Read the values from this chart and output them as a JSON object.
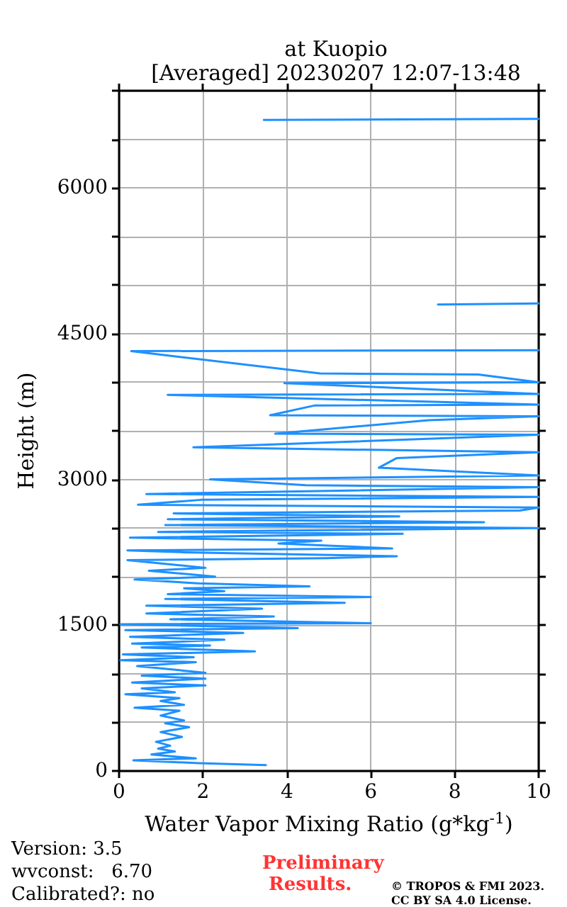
{
  "chart_data": {
    "type": "line",
    "title": "at Kuopio",
    "subtitle": "[Averaged] 20230207 12:07-13:48",
    "xlabel": "Water Vapor Mixing Ratio (g*kg$^{-1}$)",
    "ylabel": "Height (m)",
    "annotations": [
      "Version: 3.5",
      "wvconst:   6.70",
      "Calibrated?: no",
      "Preliminary Results.",
      "© TROPOS & FMI 2023. CC BY SA 4.0 License."
    ],
    "series": [
      {
        "color": "#1e90ff",
        "x": [
          3.5,
          1.9,
          0.34,
          1.83,
          0.77,
          1.33,
          0.93,
          1.22,
          0.88,
          1.5,
          0.99,
          1.67,
          1.1,
          1.55,
          0.99,
          1.44,
          0.37,
          1.55,
          0.99,
          1.44,
          0.15,
          1.33,
          0.54,
          2.06,
          0.31,
          2.06,
          0.54,
          2.06,
          0.43,
          1.83,
          0.03,
          1.78,
          0.09,
          3.24,
          0.54,
          2.17,
          0.31,
          2.51,
          0.26,
          2.96,
          0.15,
          4.26,
          0.03,
          6.0,
          1.22,
          3.69,
          0.65,
          3.41,
          0.65,
          5.38,
          1.1,
          6.0,
          1.16,
          2.51,
          1.55,
          4.54,
          1.89,
          0.37,
          2.29,
          0.71,
          2.06,
          0.2,
          4.93,
          6.62,
          1.55,
          0.2,
          6.51,
          3.8,
          4.82,
          0.26,
          6.76,
          0.93,
          10,
          1.1,
          8.7,
          1.16,
          6.68,
          1.3,
          9.55,
          10,
          0.45,
          1.95,
          10,
          0.65,
          10,
          4.45,
          2.17,
          10,
          6.19,
          6.62,
          10,
          1.77,
          10,
          3.72,
          7.38,
          10,
          3.6,
          4.65,
          10,
          1.16,
          10,
          3.94,
          10,
          8.56,
          4.79,
          0.29,
          10,
          null,
          7.6,
          10,
          null,
          3.45,
          10
        ],
        "values": [
          60,
          80,
          110,
          130,
          170,
          200,
          230,
          260,
          300,
          350,
          400,
          450,
          490,
          520,
          570,
          620,
          650,
          680,
          720,
          750,
          790,
          810,
          850,
          880,
          910,
          950,
          980,
          1010,
          1080,
          1120,
          1140,
          1170,
          1200,
          1230,
          1270,
          1290,
          1310,
          1350,
          1380,
          1420,
          1450,
          1470,
          1510,
          1520,
          1560,
          1590,
          1620,
          1670,
          1700,
          1730,
          1770,
          1790,
          1820,
          1850,
          1880,
          1900,
          1930,
          1970,
          2000,
          2060,
          2090,
          2170,
          2190,
          2210,
          2250,
          2270,
          2290,
          2340,
          2370,
          2400,
          2440,
          2460,
          2500,
          2530,
          2560,
          2590,
          2620,
          2650,
          2680,
          2710,
          2740,
          2790,
          2820,
          2850,
          2920,
          2940,
          3000,
          3040,
          3120,
          3220,
          3280,
          3330,
          3460,
          3470,
          3610,
          3650,
          3660,
          3760,
          3770,
          3870,
          3880,
          3990,
          4000,
          4080,
          4090,
          4320,
          4330,
          null,
          4800,
          4810,
          null,
          6700,
          6710
        ]
      }
    ],
    "xlim": [
      0,
      10
    ],
    "xticks": [
      0,
      2,
      4,
      6,
      8,
      10
    ],
    "ylim": [
      0,
      7000
    ],
    "yticks": [
      0,
      {
        "value": 500,
        "label": null
      },
      {
        "value": 1000,
        "label": null
      },
      1500,
      {
        "value": 2000,
        "label": null
      },
      {
        "value": 2500,
        "label": null
      },
      3000,
      {
        "value": 3500,
        "label": null
      },
      {
        "value": 4000,
        "label": null
      },
      4500,
      {
        "value": 5000,
        "label": null
      },
      {
        "value": 5500,
        "label": null
      },
      6000,
      {
        "value": 6500,
        "label": null
      },
      {
        "value": 7000,
        "label": null
      }
    ],
    "grid": true,
    "line_style": "solid"
  }
}
